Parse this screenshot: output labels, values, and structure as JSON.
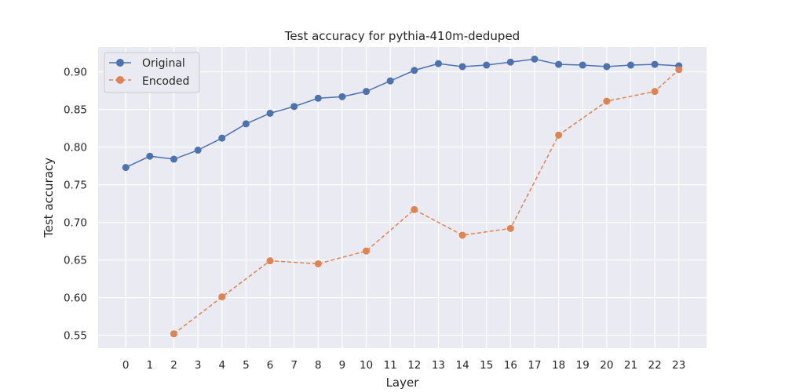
{
  "chart_data": {
    "type": "line",
    "title": "Test accuracy for pythia-410m-deduped",
    "xlabel": "Layer",
    "ylabel": "Test accuracy",
    "x": [
      0,
      1,
      2,
      3,
      4,
      5,
      6,
      7,
      8,
      9,
      10,
      11,
      12,
      13,
      14,
      15,
      16,
      17,
      18,
      19,
      20,
      21,
      22,
      23
    ],
    "xlim": [
      -1.15,
      24.15
    ],
    "ylim": [
      0.533,
      0.933
    ],
    "yticks": [
      0.55,
      0.6,
      0.65,
      0.7,
      0.75,
      0.8,
      0.85,
      0.9
    ],
    "ytick_labels": [
      "0.55",
      "0.60",
      "0.65",
      "0.70",
      "0.75",
      "0.80",
      "0.85",
      "0.90"
    ],
    "grid": true,
    "legend_position": "top-left",
    "series": [
      {
        "name": "Original",
        "color": "#4c72b0",
        "style": "solid",
        "x": [
          0,
          1,
          2,
          3,
          4,
          5,
          6,
          7,
          8,
          9,
          10,
          11,
          12,
          13,
          14,
          15,
          16,
          17,
          18,
          19,
          20,
          21,
          22,
          23
        ],
        "values": [
          0.773,
          0.788,
          0.784,
          0.796,
          0.812,
          0.831,
          0.845,
          0.854,
          0.865,
          0.867,
          0.874,
          0.888,
          0.902,
          0.911,
          0.907,
          0.909,
          0.913,
          0.917,
          0.91,
          0.909,
          0.907,
          0.909,
          0.91,
          0.908
        ]
      },
      {
        "name": "Encoded",
        "color": "#dd8452",
        "style": "dashed",
        "x": [
          2,
          4,
          6,
          8,
          10,
          12,
          14,
          16,
          18,
          20,
          22,
          23
        ],
        "values": [
          0.552,
          0.601,
          0.649,
          0.645,
          0.662,
          0.717,
          0.683,
          0.692,
          0.816,
          0.861,
          0.874,
          0.903
        ]
      }
    ]
  }
}
